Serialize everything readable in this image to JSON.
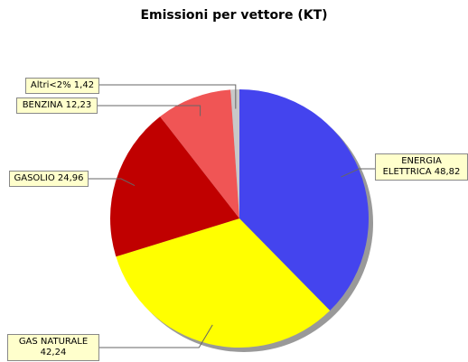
{
  "chart_data": {
    "type": "pie",
    "title": "Emissioni per vettore (KT)",
    "categories": [
      "ENERGIA ELETTRICA",
      "GAS NATURALE",
      "GASOLIO",
      "BENZINA",
      "Altri<2%"
    ],
    "values": [
      48.82,
      42.24,
      24.96,
      12.23,
      1.42
    ],
    "value_labels": [
      "48,82",
      "42,24",
      "24,96",
      "12,23",
      "1,42"
    ],
    "colors": [
      "#4444ee",
      "#ffff00",
      "#c00000",
      "#f05555",
      "#c8c8c8"
    ]
  }
}
